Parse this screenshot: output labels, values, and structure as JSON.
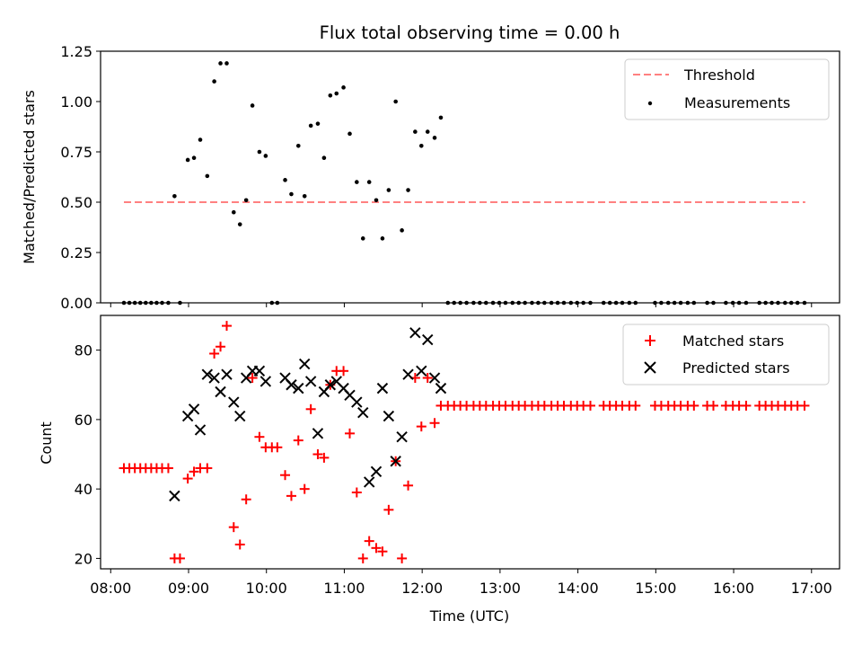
{
  "chart_data": [
    {
      "type": "scatter",
      "panel": "top",
      "title": "Flux total observing time = 0.00 h",
      "ylabel": "Matched/Predicted stars",
      "xlabel": "",
      "ylim": [
        0,
        1.25
      ],
      "yticks": [
        "0.00",
        "0.25",
        "0.50",
        "0.75",
        "1.00",
        "1.25"
      ],
      "ytick_values": [
        0,
        0.25,
        0.5,
        0.75,
        1.0,
        1.25
      ],
      "xlim": [
        7.87,
        17.36
      ],
      "threshold": {
        "name": "Threshold",
        "y": 0.5,
        "x_start": 8.17,
        "x_end": 16.92,
        "color": "#ff8080"
      },
      "series": [
        {
          "name": "Measurements",
          "color": "#000000",
          "marker": "dot",
          "points": [
            [
              8.17,
              0
            ],
            [
              8.24,
              0
            ],
            [
              8.31,
              0
            ],
            [
              8.38,
              0
            ],
            [
              8.45,
              0
            ],
            [
              8.52,
              0
            ],
            [
              8.59,
              0
            ],
            [
              8.66,
              0
            ],
            [
              8.74,
              0
            ],
            [
              8.82,
              0.53
            ],
            [
              8.89,
              0
            ],
            [
              8.99,
              0.71
            ],
            [
              9.07,
              0.72
            ],
            [
              9.15,
              0.81
            ],
            [
              9.24,
              0.63
            ],
            [
              9.33,
              1.1
            ],
            [
              9.41,
              1.19
            ],
            [
              9.49,
              1.19
            ],
            [
              9.58,
              0.45
            ],
            [
              9.66,
              0.39
            ],
            [
              9.74,
              0.51
            ],
            [
              9.82,
              0.98
            ],
            [
              9.91,
              0.75
            ],
            [
              9.99,
              0.73
            ],
            [
              10.07,
              0
            ],
            [
              10.14,
              0
            ],
            [
              10.24,
              0.61
            ],
            [
              10.32,
              0.54
            ],
            [
              10.41,
              0.78
            ],
            [
              10.49,
              0.53
            ],
            [
              10.57,
              0.88
            ],
            [
              10.66,
              0.89
            ],
            [
              10.74,
              0.72
            ],
            [
              10.82,
              1.03
            ],
            [
              10.9,
              1.04
            ],
            [
              10.99,
              1.07
            ],
            [
              11.07,
              0.84
            ],
            [
              11.16,
              0.6
            ],
            [
              11.24,
              0.32
            ],
            [
              11.32,
              0.6
            ],
            [
              11.41,
              0.51
            ],
            [
              11.49,
              0.32
            ],
            [
              11.57,
              0.56
            ],
            [
              11.66,
              1.0
            ],
            [
              11.74,
              0.36
            ],
            [
              11.82,
              0.56
            ],
            [
              11.91,
              0.85
            ],
            [
              11.99,
              0.78
            ],
            [
              12.07,
              0.85
            ],
            [
              12.16,
              0.82
            ],
            [
              12.24,
              0.92
            ],
            [
              12.33,
              0
            ],
            [
              12.41,
              0
            ],
            [
              12.49,
              0
            ],
            [
              12.57,
              0
            ],
            [
              12.66,
              0
            ],
            [
              12.74,
              0
            ],
            [
              12.82,
              0
            ],
            [
              12.91,
              0
            ],
            [
              12.99,
              0
            ],
            [
              13.07,
              0
            ],
            [
              13.16,
              0
            ],
            [
              13.24,
              0
            ],
            [
              13.32,
              0
            ],
            [
              13.41,
              0
            ],
            [
              13.49,
              0
            ],
            [
              13.57,
              0
            ],
            [
              13.66,
              0
            ],
            [
              13.74,
              0
            ],
            [
              13.82,
              0
            ],
            [
              13.91,
              0
            ],
            [
              13.99,
              0
            ],
            [
              14.07,
              0
            ],
            [
              14.16,
              0
            ],
            [
              14.33,
              0
            ],
            [
              14.41,
              0
            ],
            [
              14.49,
              0
            ],
            [
              14.57,
              0
            ],
            [
              14.66,
              0
            ],
            [
              14.74,
              0
            ],
            [
              14.99,
              0
            ],
            [
              15.07,
              0
            ],
            [
              15.16,
              0
            ],
            [
              15.24,
              0
            ],
            [
              15.32,
              0
            ],
            [
              15.41,
              0
            ],
            [
              15.49,
              0
            ],
            [
              15.66,
              0
            ],
            [
              15.74,
              0
            ],
            [
              15.9,
              0
            ],
            [
              15.99,
              0
            ],
            [
              16.07,
              0
            ],
            [
              16.16,
              0
            ],
            [
              16.33,
              0
            ],
            [
              16.41,
              0
            ],
            [
              16.49,
              0
            ],
            [
              16.57,
              0
            ],
            [
              16.66,
              0
            ],
            [
              16.74,
              0
            ],
            [
              16.82,
              0
            ],
            [
              16.91,
              0
            ]
          ]
        }
      ],
      "legend": {
        "position": "upper right",
        "entries": [
          "Threshold",
          "Measurements"
        ]
      }
    },
    {
      "type": "scatter",
      "panel": "bottom",
      "title": "",
      "xlabel": "Time (UTC)",
      "ylabel": "Count",
      "ylim": [
        17,
        90
      ],
      "yticks": [
        "20",
        "40",
        "60",
        "80"
      ],
      "ytick_values": [
        20,
        40,
        60,
        80
      ],
      "xlim": [
        7.87,
        17.36
      ],
      "xticks": [
        "08:00",
        "09:00",
        "10:00",
        "11:00",
        "12:00",
        "13:00",
        "14:00",
        "15:00",
        "16:00",
        "17:00"
      ],
      "xtick_values": [
        8,
        9,
        10,
        11,
        12,
        13,
        14,
        15,
        16,
        17
      ],
      "series": [
        {
          "name": "Matched stars",
          "color": "#ff0000",
          "marker": "plus",
          "points": [
            [
              8.17,
              46
            ],
            [
              8.24,
              46
            ],
            [
              8.31,
              46
            ],
            [
              8.38,
              46
            ],
            [
              8.45,
              46
            ],
            [
              8.52,
              46
            ],
            [
              8.59,
              46
            ],
            [
              8.66,
              46
            ],
            [
              8.74,
              46
            ],
            [
              8.82,
              20
            ],
            [
              8.89,
              20
            ],
            [
              8.99,
              43
            ],
            [
              9.07,
              45
            ],
            [
              9.15,
              46
            ],
            [
              9.24,
              46
            ],
            [
              9.33,
              79
            ],
            [
              9.41,
              81
            ],
            [
              9.49,
              87
            ],
            [
              9.58,
              29
            ],
            [
              9.66,
              24
            ],
            [
              9.74,
              37
            ],
            [
              9.82,
              72
            ],
            [
              9.91,
              55
            ],
            [
              9.99,
              52
            ],
            [
              10.07,
              52
            ],
            [
              10.14,
              52
            ],
            [
              10.24,
              44
            ],
            [
              10.32,
              38
            ],
            [
              10.41,
              54
            ],
            [
              10.49,
              40
            ],
            [
              10.57,
              63
            ],
            [
              10.66,
              50
            ],
            [
              10.74,
              49
            ],
            [
              10.82,
              70
            ],
            [
              10.9,
              74
            ],
            [
              10.99,
              74
            ],
            [
              11.07,
              56
            ],
            [
              11.16,
              39
            ],
            [
              11.24,
              20
            ],
            [
              11.32,
              25
            ],
            [
              11.41,
              23
            ],
            [
              11.49,
              22
            ],
            [
              11.57,
              34
            ],
            [
              11.66,
              48
            ],
            [
              11.74,
              20
            ],
            [
              11.82,
              41
            ],
            [
              11.91,
              72
            ],
            [
              11.99,
              58
            ],
            [
              12.07,
              72
            ],
            [
              12.16,
              59
            ],
            [
              12.24,
              64
            ],
            [
              12.33,
              64
            ],
            [
              12.41,
              64
            ],
            [
              12.49,
              64
            ],
            [
              12.57,
              64
            ],
            [
              12.66,
              64
            ],
            [
              12.74,
              64
            ],
            [
              12.82,
              64
            ],
            [
              12.91,
              64
            ],
            [
              12.99,
              64
            ],
            [
              13.07,
              64
            ],
            [
              13.16,
              64
            ],
            [
              13.24,
              64
            ],
            [
              13.32,
              64
            ],
            [
              13.41,
              64
            ],
            [
              13.49,
              64
            ],
            [
              13.57,
              64
            ],
            [
              13.66,
              64
            ],
            [
              13.74,
              64
            ],
            [
              13.82,
              64
            ],
            [
              13.91,
              64
            ],
            [
              13.99,
              64
            ],
            [
              14.07,
              64
            ],
            [
              14.16,
              64
            ],
            [
              14.33,
              64
            ],
            [
              14.41,
              64
            ],
            [
              14.49,
              64
            ],
            [
              14.57,
              64
            ],
            [
              14.66,
              64
            ],
            [
              14.74,
              64
            ],
            [
              14.99,
              64
            ],
            [
              15.07,
              64
            ],
            [
              15.16,
              64
            ],
            [
              15.24,
              64
            ],
            [
              15.32,
              64
            ],
            [
              15.41,
              64
            ],
            [
              15.49,
              64
            ],
            [
              15.66,
              64
            ],
            [
              15.74,
              64
            ],
            [
              15.9,
              64
            ],
            [
              15.99,
              64
            ],
            [
              16.07,
              64
            ],
            [
              16.16,
              64
            ],
            [
              16.33,
              64
            ],
            [
              16.41,
              64
            ],
            [
              16.49,
              64
            ],
            [
              16.57,
              64
            ],
            [
              16.66,
              64
            ],
            [
              16.74,
              64
            ],
            [
              16.82,
              64
            ],
            [
              16.91,
              64
            ]
          ]
        },
        {
          "name": "Predicted stars",
          "color": "#000000",
          "marker": "x",
          "points": [
            [
              8.82,
              38
            ],
            [
              8.99,
              61
            ],
            [
              9.07,
              63
            ],
            [
              9.15,
              57
            ],
            [
              9.24,
              73
            ],
            [
              9.33,
              72
            ],
            [
              9.41,
              68
            ],
            [
              9.49,
              73
            ],
            [
              9.58,
              65
            ],
            [
              9.66,
              61
            ],
            [
              9.74,
              72
            ],
            [
              9.82,
              74
            ],
            [
              9.91,
              74
            ],
            [
              9.99,
              71
            ],
            [
              10.24,
              72
            ],
            [
              10.32,
              70
            ],
            [
              10.41,
              69
            ],
            [
              10.49,
              76
            ],
            [
              10.57,
              71
            ],
            [
              10.66,
              56
            ],
            [
              10.74,
              68
            ],
            [
              10.82,
              70
            ],
            [
              10.9,
              71
            ],
            [
              10.99,
              69
            ],
            [
              11.07,
              67
            ],
            [
              11.16,
              65
            ],
            [
              11.24,
              62
            ],
            [
              11.32,
              42
            ],
            [
              11.41,
              45
            ],
            [
              11.49,
              69
            ],
            [
              11.57,
              61
            ],
            [
              11.66,
              48
            ],
            [
              11.74,
              55
            ],
            [
              11.82,
              73
            ],
            [
              11.91,
              85
            ],
            [
              11.99,
              74
            ],
            [
              12.07,
              83
            ],
            [
              12.16,
              72
            ],
            [
              12.24,
              69
            ]
          ]
        }
      ],
      "legend": {
        "position": "upper right",
        "entries": [
          "Matched stars",
          "Predicted stars"
        ]
      }
    }
  ]
}
